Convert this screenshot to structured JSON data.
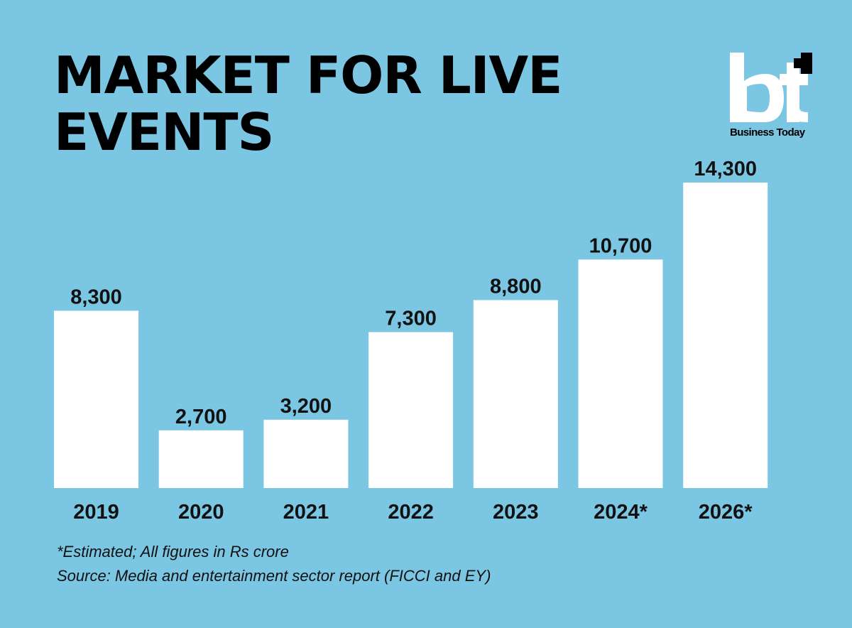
{
  "title": "MARKET FOR LIVE EVENTS",
  "logo": {
    "mark": "bt",
    "name": "Business Today"
  },
  "colors": {
    "background": "#7ac6e3",
    "bar": "#ffffff",
    "text": "#111111"
  },
  "chart_data": {
    "type": "bar",
    "title": "MARKET FOR LIVE EVENTS",
    "categories": [
      "2019",
      "2020",
      "2021",
      "2022",
      "2023",
      "2024*",
      "2026*"
    ],
    "values": [
      8300,
      2700,
      3200,
      7300,
      8800,
      10700,
      14300
    ],
    "value_labels": [
      "8,300",
      "2,700",
      "3,200",
      "7,300",
      "8,800",
      "10,700",
      "14,300"
    ],
    "xlabel": "",
    "ylabel": "",
    "grid": false,
    "legend": "none"
  },
  "notes": {
    "estimate": "*Estimated; All figures in Rs crore",
    "source": "Source: Media and entertainment sector report (FICCI and EY)"
  }
}
